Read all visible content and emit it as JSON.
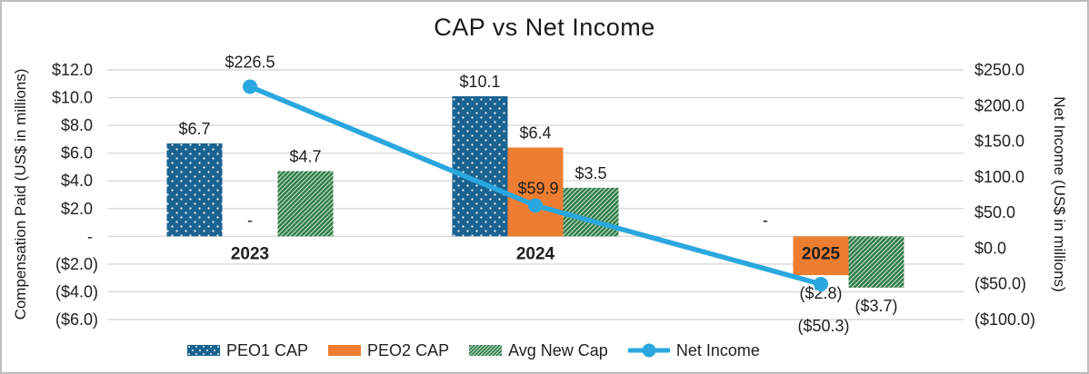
{
  "chart_data": {
    "type": "combo-bar-line",
    "title": "CAP vs Net Income",
    "categories": [
      "2023",
      "2024",
      "2025"
    ],
    "series": [
      {
        "name": "PEO1 CAP",
        "type": "bar",
        "axis": "left",
        "color": "#1A6390",
        "pattern": "dots",
        "values": [
          6.7,
          10.1,
          0
        ],
        "labels": [
          "$6.7",
          "$10.1",
          "-"
        ]
      },
      {
        "name": "PEO2 CAP",
        "type": "bar",
        "axis": "left",
        "color": "#ED7D31",
        "pattern": "solid",
        "values": [
          0,
          6.4,
          -2.8
        ],
        "labels": [
          "-",
          "$6.4",
          "($2.8)"
        ]
      },
      {
        "name": "Avg New Cap",
        "type": "bar",
        "axis": "left",
        "color": "#2E7D46",
        "pattern": "hatch",
        "values": [
          4.7,
          3.5,
          -3.7
        ],
        "labels": [
          "$4.7",
          "$3.5",
          "($3.7)"
        ]
      },
      {
        "name": "Net Income",
        "type": "line",
        "axis": "right",
        "color": "#2AA7DF",
        "pattern": "line-marker",
        "values": [
          226.5,
          59.9,
          -50.3
        ],
        "labels": [
          "$226.5",
          "$59.9",
          "($50.3)"
        ]
      }
    ],
    "left_axis": {
      "title": "Compensation Paid (US$ in millions)",
      "min": -6,
      "max": 12,
      "step": 2,
      "tick_values": [
        12,
        10,
        8,
        6,
        4,
        2,
        0,
        -2,
        -4,
        -6
      ],
      "tick_labels": [
        "$12.0",
        "$10.0",
        "$8.0",
        "$6.0",
        "$4.0",
        "$2.0",
        "-",
        "($2.0)",
        "($4.0)",
        "($6.0)"
      ]
    },
    "right_axis": {
      "title": "Net Income (US$ in millions)",
      "min": -100,
      "max": 250,
      "step": 50,
      "tick_values": [
        250,
        200,
        150,
        100,
        50,
        0,
        -50,
        -100
      ],
      "tick_labels": [
        "$250.0",
        "$200.0",
        "$150.0",
        "$100.0",
        "$50.0",
        "$0.0",
        "($50.0)",
        "($100.0)"
      ]
    },
    "legend": {
      "position": "bottom",
      "items": [
        "PEO1 CAP",
        "PEO2 CAP",
        "Avg New Cap",
        "Net Income"
      ]
    },
    "grid": true,
    "colors": {
      "gridline": "#D9D9D9",
      "text": "#1F1F1F",
      "frame_border": "#BDBDBD"
    }
  }
}
